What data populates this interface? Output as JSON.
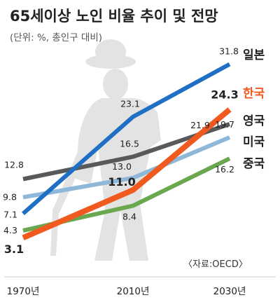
{
  "chart_data": {
    "type": "line",
    "title": "65세이상 노인 비율 추이 및 전망",
    "subtitle": "(단위: %, 총인구 대비)",
    "source": "〈자료:OECD〉",
    "x": [
      "1970년",
      "2010년",
      "2030년"
    ],
    "grid": false,
    "series": [
      {
        "name": "일본",
        "values": [
          7.1,
          23.1,
          31.8
        ],
        "labels": [
          "7.1",
          "23.1",
          "31.8"
        ],
        "color": "#1f6fc5"
      },
      {
        "name": "한국",
        "values": [
          3.1,
          11.0,
          24.3
        ],
        "labels": [
          "3.1",
          "11.0",
          "24.3"
        ],
        "color": "#f15a1f"
      },
      {
        "name": "영국",
        "values": [
          12.8,
          16.5,
          21.9
        ],
        "labels": [
          "12.8",
          "16.5",
          "21.9"
        ],
        "color": "#58595b"
      },
      {
        "name": "미국",
        "values": [
          9.8,
          13.0,
          19.7
        ],
        "labels": [
          "9.8",
          "13.0",
          "19.7"
        ],
        "color": "#8fb8d8"
      },
      {
        "name": "중국",
        "values": [
          4.3,
          8.4,
          16.2
        ],
        "labels": [
          "4.3",
          "8.4",
          "16.2"
        ],
        "color": "#6aa84f"
      }
    ]
  }
}
